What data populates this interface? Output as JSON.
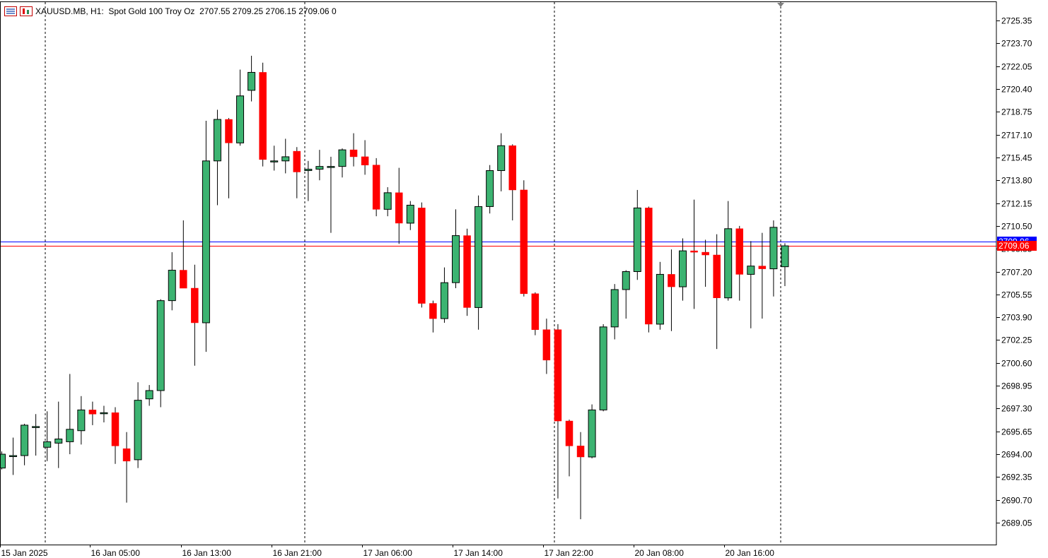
{
  "header": {
    "symbol": "XAUUSD.MB, H1:",
    "description": "Spot Gold 100 Troy Oz",
    "ohlc": "2707.55 2709.25 2706.15 2709.06",
    "volume": "0"
  },
  "colors": {
    "bull": "#3cb371",
    "bear": "#ff0000",
    "ask_line": "#0000ff",
    "bid_line": "#ff0000",
    "grid": "#000000",
    "background": "#ffffff"
  },
  "chart_data": {
    "type": "candlestick",
    "timeframe": "H1",
    "y_ticks": [
      2725.35,
      2723.7,
      2722.05,
      2720.4,
      2718.75,
      2717.1,
      2715.45,
      2713.8,
      2712.15,
      2710.5,
      2708.85,
      2707.2,
      2705.55,
      2703.9,
      2702.25,
      2700.6,
      2698.95,
      2697.3,
      2695.65,
      2694.0,
      2692.35,
      2690.7,
      2689.05
    ],
    "x_labels": [
      "15 Jan 2025",
      "16 Jan 05:00",
      "16 Jan 13:00",
      "16 Jan 21:00",
      "17 Jan 06:00",
      "17 Jan 14:00",
      "17 Jan 22:00",
      "20 Jan 08:00",
      "20 Jan 16:00"
    ],
    "ask_price": "2709.06",
    "bid_price": "2709.06",
    "candles": [
      {
        "o": 2693.0,
        "h": 2694.2,
        "l": 2692.9,
        "c": 2694.0
      },
      {
        "o": 2693.9,
        "h": 2695.2,
        "l": 2692.5,
        "c": 2693.9
      },
      {
        "o": 2693.9,
        "h": 2696.2,
        "l": 2693.2,
        "c": 2696.1
      },
      {
        "o": 2696.0,
        "h": 2696.9,
        "l": 2693.9,
        "c": 2696.0
      },
      {
        "o": 2694.5,
        "h": 2697.1,
        "l": 2693.5,
        "c": 2694.9
      },
      {
        "o": 2694.8,
        "h": 2697.8,
        "l": 2693.0,
        "c": 2695.1
      },
      {
        "o": 2694.9,
        "h": 2699.8,
        "l": 2694.0,
        "c": 2695.8
      },
      {
        "o": 2695.7,
        "h": 2698.2,
        "l": 2694.7,
        "c": 2697.2
      },
      {
        "o": 2697.2,
        "h": 2697.8,
        "l": 2696.1,
        "c": 2696.9
      },
      {
        "o": 2697.0,
        "h": 2697.5,
        "l": 2696.3,
        "c": 2697.0
      },
      {
        "o": 2697.0,
        "h": 2697.4,
        "l": 2693.3,
        "c": 2694.6
      },
      {
        "o": 2694.4,
        "h": 2695.6,
        "l": 2690.5,
        "c": 2693.5
      },
      {
        "o": 2693.6,
        "h": 2699.2,
        "l": 2693.0,
        "c": 2697.9
      },
      {
        "o": 2698.0,
        "h": 2699.0,
        "l": 2697.5,
        "c": 2698.6
      },
      {
        "o": 2698.6,
        "h": 2705.2,
        "l": 2697.4,
        "c": 2705.1
      },
      {
        "o": 2705.1,
        "h": 2708.6,
        "l": 2704.4,
        "c": 2707.3
      },
      {
        "o": 2707.3,
        "h": 2710.9,
        "l": 2706.0,
        "c": 2706.0
      },
      {
        "o": 2706.0,
        "h": 2707.7,
        "l": 2700.4,
        "c": 2703.5
      },
      {
        "o": 2703.5,
        "h": 2718.1,
        "l": 2701.4,
        "c": 2715.2
      },
      {
        "o": 2715.2,
        "h": 2718.9,
        "l": 2712.0,
        "c": 2718.2
      },
      {
        "o": 2718.2,
        "h": 2718.3,
        "l": 2712.5,
        "c": 2716.5
      },
      {
        "o": 2716.5,
        "h": 2721.8,
        "l": 2716.3,
        "c": 2719.9
      },
      {
        "o": 2720.3,
        "h": 2722.8,
        "l": 2719.5,
        "c": 2721.6
      },
      {
        "o": 2721.6,
        "h": 2722.3,
        "l": 2714.8,
        "c": 2715.3
      },
      {
        "o": 2715.2,
        "h": 2716.3,
        "l": 2714.5,
        "c": 2715.2
      },
      {
        "o": 2715.2,
        "h": 2716.8,
        "l": 2714.3,
        "c": 2715.5
      },
      {
        "o": 2715.9,
        "h": 2716.2,
        "l": 2712.5,
        "c": 2714.4
      },
      {
        "o": 2714.5,
        "h": 2715.2,
        "l": 2712.3,
        "c": 2714.6
      },
      {
        "o": 2714.6,
        "h": 2716.0,
        "l": 2713.8,
        "c": 2714.8
      },
      {
        "o": 2714.8,
        "h": 2715.5,
        "l": 2710.0,
        "c": 2714.8
      },
      {
        "o": 2714.8,
        "h": 2716.1,
        "l": 2714.0,
        "c": 2716.0
      },
      {
        "o": 2716.0,
        "h": 2717.2,
        "l": 2714.8,
        "c": 2715.5
      },
      {
        "o": 2715.5,
        "h": 2716.7,
        "l": 2714.2,
        "c": 2714.9
      },
      {
        "o": 2714.9,
        "h": 2715.4,
        "l": 2711.2,
        "c": 2711.7
      },
      {
        "o": 2711.7,
        "h": 2713.3,
        "l": 2711.2,
        "c": 2712.9
      },
      {
        "o": 2712.9,
        "h": 2714.7,
        "l": 2709.2,
        "c": 2710.7
      },
      {
        "o": 2710.7,
        "h": 2712.3,
        "l": 2710.2,
        "c": 2712.0
      },
      {
        "o": 2711.8,
        "h": 2712.2,
        "l": 2704.6,
        "c": 2704.9
      },
      {
        "o": 2704.9,
        "h": 2705.1,
        "l": 2702.8,
        "c": 2703.8
      },
      {
        "o": 2703.8,
        "h": 2707.5,
        "l": 2703.5,
        "c": 2706.4
      },
      {
        "o": 2706.4,
        "h": 2711.7,
        "l": 2706.0,
        "c": 2709.8
      },
      {
        "o": 2709.8,
        "h": 2710.3,
        "l": 2704.0,
        "c": 2704.6
      },
      {
        "o": 2704.6,
        "h": 2712.7,
        "l": 2703.0,
        "c": 2711.9
      },
      {
        "o": 2711.9,
        "h": 2714.9,
        "l": 2711.4,
        "c": 2714.5
      },
      {
        "o": 2714.5,
        "h": 2717.2,
        "l": 2713.0,
        "c": 2716.3
      },
      {
        "o": 2716.3,
        "h": 2716.4,
        "l": 2710.9,
        "c": 2713.1
      },
      {
        "o": 2713.1,
        "h": 2713.8,
        "l": 2705.4,
        "c": 2705.6
      },
      {
        "o": 2705.6,
        "h": 2705.7,
        "l": 2702.6,
        "c": 2703.0
      },
      {
        "o": 2703.0,
        "h": 2703.8,
        "l": 2699.8,
        "c": 2700.8
      },
      {
        "o": 2703.0,
        "h": 2703.4,
        "l": 2690.8,
        "c": 2696.4
      },
      {
        "o": 2696.4,
        "h": 2696.5,
        "l": 2692.4,
        "c": 2694.6
      },
      {
        "o": 2694.6,
        "h": 2695.6,
        "l": 2689.3,
        "c": 2693.8
      },
      {
        "o": 2693.8,
        "h": 2697.6,
        "l": 2693.7,
        "c": 2697.2
      },
      {
        "o": 2697.2,
        "h": 2703.4,
        "l": 2697.1,
        "c": 2703.2
      },
      {
        "o": 2703.2,
        "h": 2706.3,
        "l": 2702.3,
        "c": 2705.9
      },
      {
        "o": 2705.9,
        "h": 2707.3,
        "l": 2703.8,
        "c": 2707.2
      },
      {
        "o": 2707.2,
        "h": 2713.1,
        "l": 2706.6,
        "c": 2711.8
      },
      {
        "o": 2711.8,
        "h": 2711.9,
        "l": 2702.8,
        "c": 2703.4
      },
      {
        "o": 2703.4,
        "h": 2707.9,
        "l": 2703.0,
        "c": 2707.0
      },
      {
        "o": 2707.0,
        "h": 2708.8,
        "l": 2702.9,
        "c": 2706.1
      },
      {
        "o": 2706.1,
        "h": 2709.6,
        "l": 2705.1,
        "c": 2708.7
      },
      {
        "o": 2708.7,
        "h": 2712.4,
        "l": 2704.5,
        "c": 2708.6
      },
      {
        "o": 2708.6,
        "h": 2709.5,
        "l": 2706.1,
        "c": 2708.4
      },
      {
        "o": 2708.4,
        "h": 2709.9,
        "l": 2701.6,
        "c": 2705.3
      },
      {
        "o": 2705.3,
        "h": 2712.3,
        "l": 2705.1,
        "c": 2710.3
      },
      {
        "o": 2710.3,
        "h": 2710.5,
        "l": 2705.1,
        "c": 2707.0
      },
      {
        "o": 2707.0,
        "h": 2709.4,
        "l": 2703.1,
        "c": 2707.6
      },
      {
        "o": 2707.6,
        "h": 2710.0,
        "l": 2703.8,
        "c": 2707.4
      },
      {
        "o": 2707.4,
        "h": 2710.9,
        "l": 2705.4,
        "c": 2710.4
      },
      {
        "o": 2707.55,
        "h": 2709.25,
        "l": 2706.15,
        "c": 2709.06
      }
    ]
  }
}
